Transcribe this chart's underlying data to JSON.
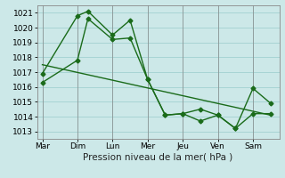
{
  "xlabel": "Pression niveau de la mer( hPa )",
  "bg_color": "#cce8e8",
  "grid_color": "#99cccc",
  "line_color": "#1a6b1a",
  "ylim": [
    1012.5,
    1021.5
  ],
  "yticks": [
    1013,
    1014,
    1015,
    1016,
    1017,
    1018,
    1019,
    1020,
    1021
  ],
  "x_labels": [
    "Mar",
    "Dim",
    "Lun",
    "Mer",
    "Jeu",
    "Ven",
    "Sam"
  ],
  "x_tick_pos": [
    0,
    2,
    4,
    6,
    8,
    10,
    12
  ],
  "xlim": [
    -0.3,
    13.5
  ],
  "series1_x": [
    0.0,
    2.0,
    2.6,
    4.0,
    5.0,
    6.0,
    7.0,
    8.0,
    9.0,
    10.0,
    11.0,
    12.0,
    13.0
  ],
  "series1_y": [
    1016.9,
    1020.8,
    1021.1,
    1019.5,
    1020.5,
    1016.5,
    1014.1,
    1014.2,
    1013.7,
    1014.1,
    1013.2,
    1015.9,
    1014.9
  ],
  "series2_x": [
    0.0,
    2.0,
    2.6,
    4.0,
    5.0,
    6.0,
    7.0,
    8.0,
    9.0,
    10.0,
    11.0,
    12.0,
    13.0
  ],
  "series2_y": [
    1016.3,
    1017.8,
    1020.6,
    1019.2,
    1019.3,
    1016.5,
    1014.1,
    1014.2,
    1014.5,
    1014.1,
    1013.2,
    1014.2,
    1014.2
  ],
  "series3_x": [
    0.0,
    13.0
  ],
  "series3_y": [
    1017.5,
    1014.1
  ],
  "fontsize_xlabel": 7.5,
  "fontsize_ticks": 6.5,
  "marker_size": 2.5,
  "line_width": 1.0
}
